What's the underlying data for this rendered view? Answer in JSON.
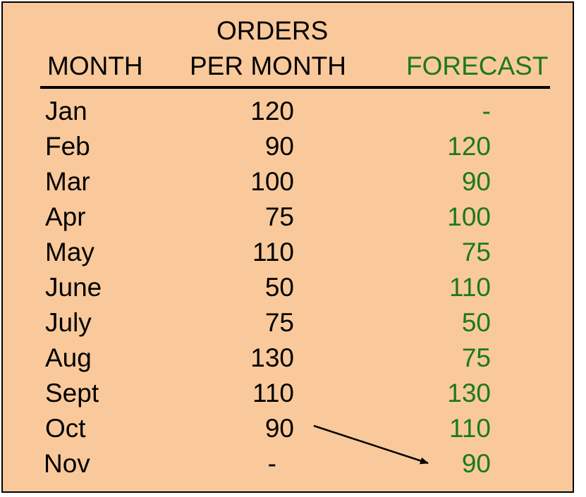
{
  "colors": {
    "background": "#f9c99b",
    "text": "#000000",
    "forecast": "#1b7a17"
  },
  "chart_data": {
    "type": "table",
    "columns": {
      "month": "MONTH",
      "orders_line1": "ORDERS",
      "orders_line2": "PER MONTH",
      "forecast": "FORECAST"
    },
    "rows": [
      {
        "month": "Jan",
        "orders": "120",
        "forecast": "-"
      },
      {
        "month": "Feb",
        "orders": "90",
        "forecast": "120"
      },
      {
        "month": "Mar",
        "orders": "100",
        "forecast": "90"
      },
      {
        "month": "Apr",
        "orders": "75",
        "forecast": "100"
      },
      {
        "month": "May",
        "orders": "110",
        "forecast": "75"
      },
      {
        "month": "June",
        "orders": "50",
        "forecast": "110"
      },
      {
        "month": "July",
        "orders": "75",
        "forecast": "50"
      },
      {
        "month": "Aug",
        "orders": "130",
        "forecast": "75"
      },
      {
        "month": "Sept",
        "orders": "110",
        "forecast": "130"
      },
      {
        "month": "Oct",
        "orders": "90",
        "forecast": "110"
      },
      {
        "month": "Nov",
        "orders": "-",
        "forecast": "90"
      }
    ],
    "annotation": {
      "from": "Oct orders",
      "to": "Nov forecast"
    }
  }
}
